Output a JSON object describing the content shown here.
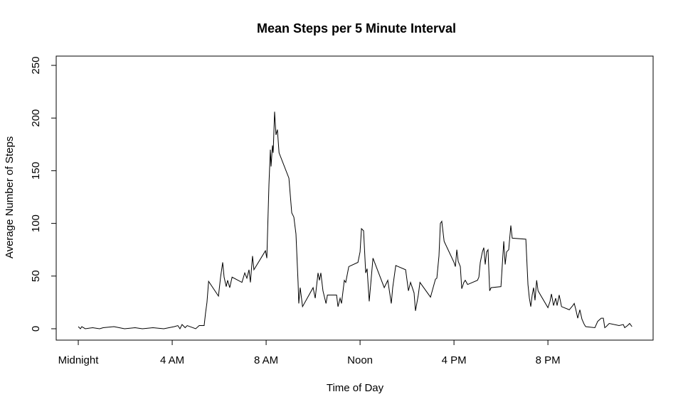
{
  "chart_data": {
    "type": "line",
    "title": "Mean Steps per 5 Minute Interval",
    "x_label": "Time of Day",
    "y_label": "Average Number of Steps",
    "color": "#000000",
    "x": [
      0,
      0.09,
      0.15,
      0.3,
      0.61,
      0.91,
      1.06,
      1.52,
      1.97,
      2.42,
      2.73,
      3.18,
      3.64,
      4.09,
      4.24,
      4.33,
      4.42,
      4.55,
      4.64,
      5.0,
      5.15,
      5.36,
      5.42,
      5.48,
      5.55,
      5.97,
      6.06,
      6.15,
      6.21,
      6.3,
      6.36,
      6.45,
      6.55,
      6.97,
      7.09,
      7.18,
      7.27,
      7.33,
      7.42,
      7.48,
      7.97,
      8.03,
      8.12,
      8.18,
      8.21,
      8.27,
      8.3,
      8.36,
      8.42,
      8.48,
      8.55,
      8.97,
      9.09,
      9.18,
      9.27,
      9.36,
      9.39,
      9.45,
      9.55,
      10.0,
      10.09,
      10.21,
      10.27,
      10.33,
      10.42,
      10.55,
      10.61,
      11.0,
      11.06,
      11.15,
      11.21,
      11.33,
      11.39,
      11.52,
      11.91,
      12.0,
      12.06,
      12.15,
      12.24,
      12.3,
      12.39,
      12.55,
      13.03,
      13.18,
      13.33,
      13.39,
      13.52,
      13.94,
      14.06,
      14.15,
      14.3,
      14.36,
      14.48,
      14.55,
      15.0,
      15.21,
      15.27,
      15.36,
      15.42,
      15.48,
      15.58,
      16.0,
      16.06,
      16.12,
      16.18,
      16.27,
      16.33,
      16.42,
      16.48,
      16.58,
      17.0,
      17.06,
      17.12,
      17.21,
      17.27,
      17.33,
      17.39,
      17.45,
      17.52,
      17.58,
      18.0,
      18.12,
      18.18,
      18.24,
      18.33,
      18.42,
      18.48,
      19.06,
      19.15,
      19.21,
      19.27,
      19.33,
      19.39,
      19.45,
      19.52,
      19.58,
      20.0,
      20.09,
      20.15,
      20.24,
      20.33,
      20.39,
      20.48,
      20.58,
      20.91,
      21.06,
      21.12,
      21.18,
      21.27,
      21.36,
      21.45,
      21.55,
      21.61,
      22.0,
      22.12,
      22.27,
      22.36,
      22.42,
      22.48,
      22.61,
      23.03,
      23.21,
      23.27,
      23.39,
      23.48,
      23.58
    ],
    "values": [
      2,
      0,
      2,
      0,
      1,
      0,
      1,
      2,
      0,
      1,
      0,
      1,
      0,
      2,
      3,
      0,
      4,
      1,
      3,
      0,
      3,
      3,
      15,
      25,
      45,
      31,
      49,
      63,
      49,
      40,
      46,
      39,
      49,
      44,
      53,
      48,
      56,
      44,
      69,
      56,
      74,
      67,
      137,
      170,
      154,
      174,
      167,
      206,
      184,
      189,
      167,
      143,
      110,
      106,
      90,
      44,
      24,
      39,
      21,
      39,
      29,
      53,
      46,
      53,
      36,
      24,
      32,
      32,
      21,
      29,
      24,
      46,
      44,
      59,
      63,
      73,
      95,
      93,
      53,
      57,
      26,
      67,
      39,
      46,
      24,
      39,
      60,
      56,
      36,
      44,
      34,
      17,
      32,
      44,
      30,
      47,
      48,
      69,
      100,
      102,
      83,
      63,
      59,
      75,
      64,
      59,
      38,
      44,
      46,
      42,
      46,
      49,
      63,
      73,
      77,
      61,
      73,
      75,
      36,
      39,
      40,
      83,
      61,
      73,
      75,
      98,
      86,
      85,
      42,
      29,
      21,
      32,
      39,
      27,
      46,
      36,
      20,
      26,
      33,
      22,
      29,
      22,
      32,
      21,
      18,
      22,
      24,
      19,
      10,
      18,
      9,
      4,
      2,
      1,
      7,
      10,
      10,
      1,
      2,
      5,
      3,
      4,
      1,
      3,
      5,
      2
    ],
    "xlim": [
      -0.94,
      24.48
    ],
    "ylim": [
      -10.8,
      258.8
    ],
    "xticks": [
      {
        "value": 0,
        "label": "Midnight"
      },
      {
        "value": 4,
        "label": "4 AM"
      },
      {
        "value": 8,
        "label": "8 AM"
      },
      {
        "value": 12,
        "label": "Noon"
      },
      {
        "value": 16,
        "label": "4 PM"
      },
      {
        "value": 20,
        "label": "8 PM"
      }
    ],
    "yticks": [
      0,
      50,
      100,
      150,
      200,
      250
    ]
  }
}
